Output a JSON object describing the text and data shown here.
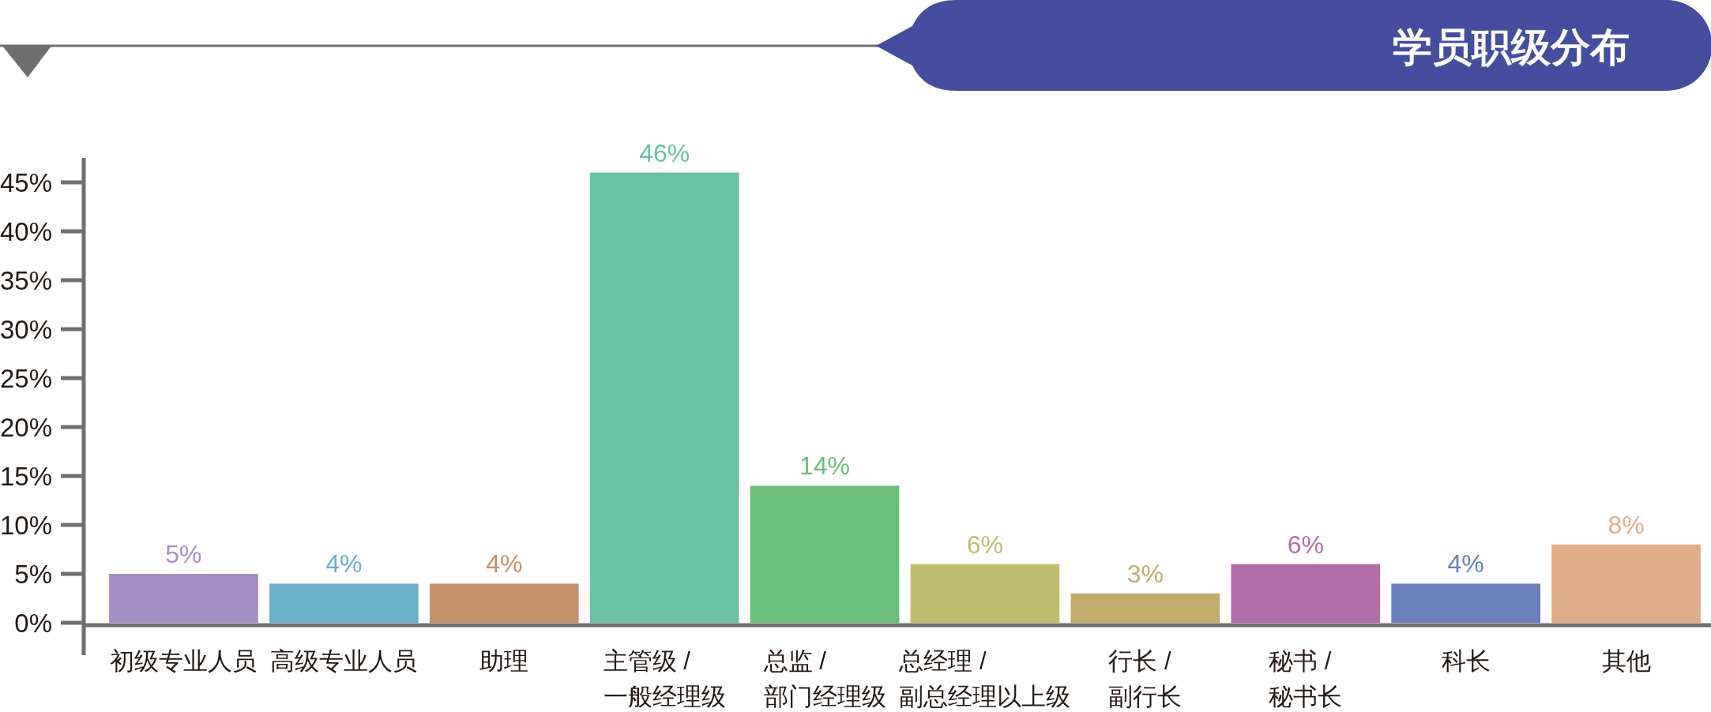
{
  "chart_data": {
    "type": "bar",
    "title": "学员职级分布",
    "categories": [
      "初级专业人员",
      "高级专业人员",
      "助理",
      "主管级 / 一般经理级",
      "总监 / 部门经理级",
      "总经理 / 副总经理以上级",
      "行长 / 副行长",
      "秘书 / 秘书长",
      "科长",
      "其他"
    ],
    "values": [
      5,
      4,
      4,
      46,
      14,
      6,
      3,
      6,
      4,
      8
    ],
    "colors": [
      "#a58ec4",
      "#6cafc8",
      "#c3916a",
      "#6bc1a3",
      "#6abd7b",
      "#c1bd6e",
      "#c3ab6c",
      "#b16ea9",
      "#6b80bc",
      "#e1ad89"
    ],
    "value_labels": [
      "5%",
      "4%",
      "4%",
      "46%",
      "14%",
      "6%",
      "3%",
      "6%",
      "4%",
      "8%"
    ],
    "ylim": [
      0,
      47.5
    ],
    "yticks": [
      {
        "value": 0,
        "label": "0%"
      },
      {
        "value": 5,
        "label": "5%"
      },
      {
        "value": 10,
        "label": "10%"
      },
      {
        "value": 15,
        "label": "15%"
      },
      {
        "value": 20,
        "label": "20%"
      },
      {
        "value": 25,
        "label": "25%"
      },
      {
        "value": 30,
        "label": "30%"
      },
      {
        "value": 35,
        "label": "35%"
      },
      {
        "value": 40,
        "label": "40%"
      },
      {
        "value": 45,
        "label": "45%"
      }
    ]
  }
}
